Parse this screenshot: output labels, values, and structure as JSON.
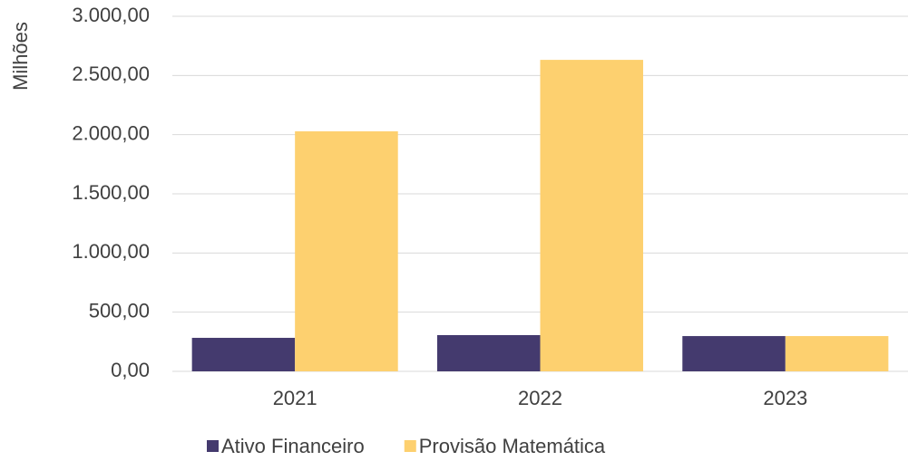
{
  "chart_data": {
    "type": "bar",
    "ylabel": "Milhões",
    "categories": [
      "2021",
      "2022",
      "2023"
    ],
    "series": [
      {
        "name": "Ativo Financeiro",
        "color": "#443a6e",
        "values": [
          283,
          306,
          298
        ]
      },
      {
        "name": "Provisão Matemática",
        "color": "#fdd06f",
        "values": [
          2028,
          2632,
          298
        ]
      }
    ],
    "ylim": [
      0,
      3000
    ],
    "yticks": [
      {
        "value": 0,
        "label": "0,00"
      },
      {
        "value": 500,
        "label": "500,00"
      },
      {
        "value": 1000,
        "label": "1.000,00"
      },
      {
        "value": 1500,
        "label": "1.500,00"
      },
      {
        "value": 2000,
        "label": "2.000,00"
      },
      {
        "value": 2500,
        "label": "2.500,00"
      },
      {
        "value": 3000,
        "label": "3.000,00"
      }
    ],
    "grid": true,
    "legend": "bottom"
  }
}
